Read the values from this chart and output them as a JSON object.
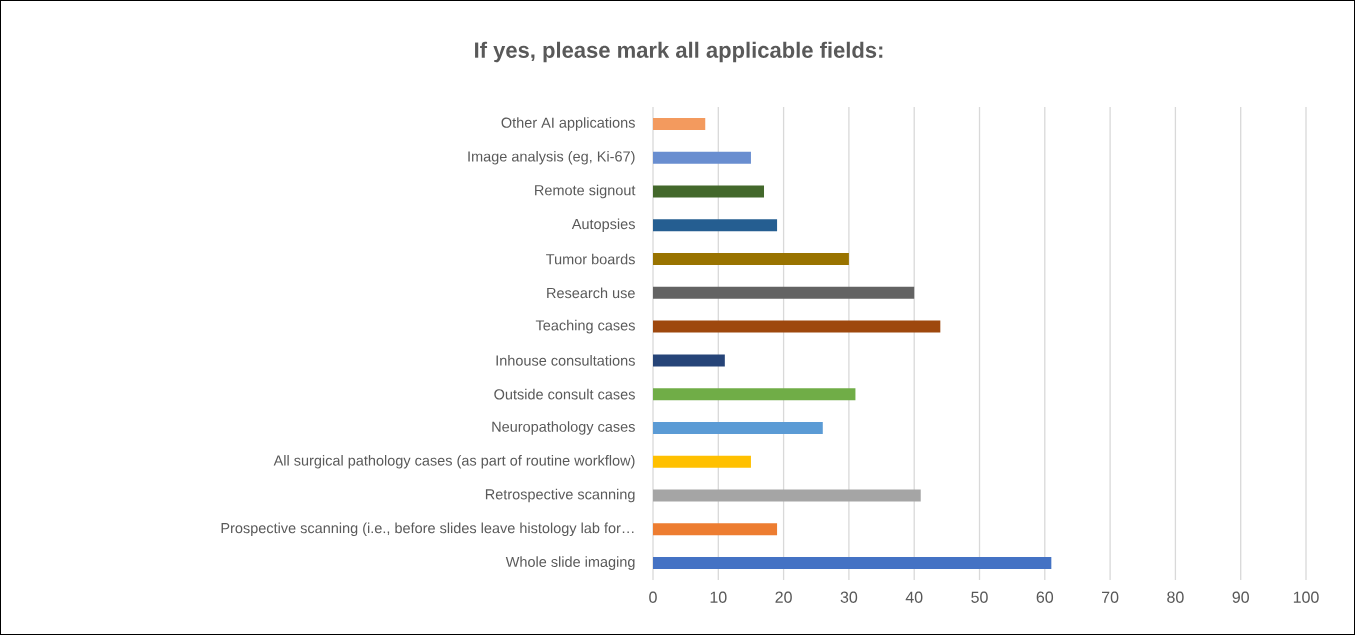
{
  "chart_data": {
    "type": "bar",
    "title": "If yes, please mark all applicable fields:",
    "orientation": "horizontal",
    "categories": [
      "Other AI applications",
      "Image analysis (eg, Ki-67)",
      "Remote signout",
      "Autopsies",
      "Tumor boards",
      "Research use",
      "Teaching cases",
      "Inhouse consultations",
      "Outside consult cases",
      "Neuropathology cases",
      "All surgical pathology cases (as part of routine workflow)",
      "Retrospective scanning",
      "Prospective scanning (i.e., before slides leave histology lab for…",
      "Whole slide imaging"
    ],
    "values": [
      8,
      15,
      17,
      19,
      30,
      40,
      44,
      11,
      31,
      26,
      15,
      41,
      19,
      61
    ],
    "colors": [
      "#f39a5e",
      "#698ed0",
      "#43682b",
      "#255e91",
      "#997300",
      "#636363",
      "#9e480e",
      "#264478",
      "#70ad47",
      "#5b9bd5",
      "#ffc000",
      "#a5a5a5",
      "#ed7d31",
      "#4472c4"
    ],
    "xlim": [
      0,
      100
    ],
    "xticks": [
      0,
      10,
      20,
      30,
      40,
      50,
      60,
      70,
      80,
      90,
      100
    ],
    "grid": "x"
  }
}
